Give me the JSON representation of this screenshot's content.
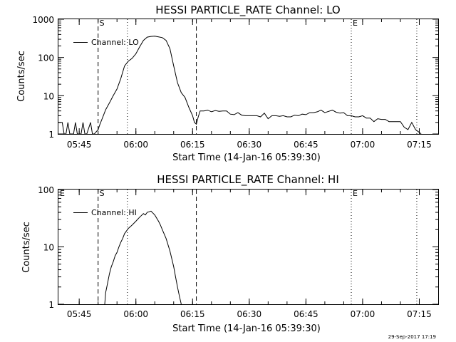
{
  "footer": {
    "date_stamp": "29-Sep-2017 17:19"
  },
  "chart_data": [
    {
      "type": "line",
      "title": "HESSI PARTICLE_RATE Channel: LO",
      "xlabel": "Start Time (14-Jan-16 05:39:30)",
      "ylabel": "Counts/sec",
      "yscale": "log",
      "ylim": [
        1,
        1000
      ],
      "xlim": [
        "05:39:30",
        "07:20:00"
      ],
      "xtick_labels": [
        "05:45",
        "06:00",
        "06:15",
        "06:30",
        "06:45",
        "07:00",
        "07:15"
      ],
      "ytick_labels": [
        "1",
        "10",
        "100",
        "1000"
      ],
      "grid": false,
      "legend_position": "top-left",
      "markers": [
        {
          "label": "S",
          "time": "05:50:00",
          "style": "dashed"
        },
        {
          "label": "",
          "time": "05:57:45",
          "style": "dotted"
        },
        {
          "label": "",
          "time": "06:16:00",
          "style": "dashed"
        },
        {
          "label": "E",
          "time": "06:57:00",
          "style": "dotted"
        },
        {
          "label": "",
          "time": "07:14:20",
          "style": "dotted"
        }
      ],
      "series": [
        {
          "name": "Channel: LO",
          "x": [
            "05:39:30",
            "05:40:30",
            "05:41:00",
            "05:41:30",
            "05:42:00",
            "05:42:30",
            "05:43:30",
            "05:44:00",
            "05:44:30",
            "05:45:30",
            "05:46:00",
            "05:46:30",
            "05:47:00",
            "05:48:00",
            "05:48:30",
            "05:49:00",
            "05:50:00",
            "05:50:30",
            "05:51:00",
            "05:51:30",
            "05:52:00",
            "05:53:00",
            "05:54:00",
            "05:55:00",
            "05:56:00",
            "05:57:00",
            "05:58:00",
            "05:59:00",
            "06:00:00",
            "06:01:00",
            "06:02:00",
            "06:03:00",
            "06:04:00",
            "06:05:00",
            "06:06:00",
            "06:07:00",
            "06:08:00",
            "06:09:00",
            "06:10:00",
            "06:11:00",
            "06:12:00",
            "06:13:00",
            "06:14:00",
            "06:15:00",
            "06:15:30",
            "06:16:00",
            "06:16:30",
            "06:17:00",
            "06:18:00",
            "06:19:00",
            "06:20:00",
            "06:21:00",
            "06:22:00",
            "06:23:00",
            "06:24:00",
            "06:25:00",
            "06:26:00",
            "06:27:00",
            "06:28:00",
            "06:29:00",
            "06:30:00",
            "06:31:00",
            "06:32:00",
            "06:33:00",
            "06:34:00",
            "06:35:00",
            "06:36:00",
            "06:37:00",
            "06:38:00",
            "06:39:00",
            "06:40:00",
            "06:41:00",
            "06:42:00",
            "06:43:00",
            "06:44:00",
            "06:45:00",
            "06:46:00",
            "06:47:00",
            "06:48:00",
            "06:49:00",
            "06:50:00",
            "06:51:00",
            "06:52:00",
            "06:53:00",
            "06:54:00",
            "06:55:00",
            "06:56:00",
            "06:57:00",
            "06:58:00",
            "06:59:00",
            "07:00:00",
            "07:01:00",
            "07:02:00",
            "07:03:00",
            "07:04:00",
            "07:05:00",
            "07:06:00",
            "07:07:00",
            "07:08:00",
            "07:09:00",
            "07:10:00",
            "07:11:00",
            "07:12:00",
            "07:13:00",
            "07:14:00",
            "07:15:00",
            "07:15:30"
          ],
          "y": [
            2,
            2,
            1,
            1,
            2,
            1,
            1,
            2,
            1,
            1,
            2,
            1,
            1,
            2,
            1,
            1,
            1.3,
            1.8,
            2.4,
            3.2,
            4.3,
            6.5,
            10,
            15,
            28,
            60,
            80,
            95,
            125,
            190,
            280,
            340,
            355,
            360,
            345,
            330,
            280,
            170,
            60,
            22,
            12,
            9,
            5,
            3,
            2,
            1.8,
            2.8,
            4,
            4,
            4.2,
            3.8,
            4.1,
            3.9,
            4,
            4,
            3.3,
            3.2,
            3.6,
            3.1,
            3,
            3,
            3,
            3,
            2.8,
            3.5,
            2.5,
            3,
            3,
            2.9,
            3,
            2.8,
            2.8,
            3.1,
            3,
            3.3,
            3.2,
            3.6,
            3.6,
            3.8,
            4.2,
            3.6,
            3.9,
            4.2,
            3.7,
            3.5,
            3.6,
            3,
            3,
            2.8,
            2.8,
            3,
            2.6,
            2.6,
            2.1,
            2.5,
            2.4,
            2.4,
            2.1,
            2.1,
            2.1,
            2.1,
            1.5,
            1.3,
            2,
            1.3,
            1.1,
            1
          ]
        }
      ]
    },
    {
      "type": "line",
      "title": "HESSI PARTICLE_RATE Channel: HI",
      "xlabel": "Start Time (14-Jan-16 05:39:30)",
      "ylabel": "Counts/sec",
      "yscale": "log",
      "ylim": [
        1,
        100
      ],
      "xlim": [
        "05:39:30",
        "07:20:00"
      ],
      "xtick_labels": [
        "05:45",
        "06:00",
        "06:15",
        "06:30",
        "06:45",
        "07:00",
        "07:15"
      ],
      "ytick_labels": [
        "1",
        "10",
        "100"
      ],
      "grid": false,
      "legend_position": "top-left",
      "markers": [
        {
          "label": "E",
          "time": "05:39:30",
          "style": "none"
        },
        {
          "label": "S",
          "time": "05:50:00",
          "style": "dashed"
        },
        {
          "label": "",
          "time": "05:57:45",
          "style": "dotted"
        },
        {
          "label": "",
          "time": "06:16:00",
          "style": "dashed"
        },
        {
          "label": "E",
          "time": "06:57:00",
          "style": "dotted"
        },
        {
          "label": "",
          "time": "07:14:20",
          "style": "dotted"
        }
      ],
      "series": [
        {
          "name": "Channel: HI",
          "x": [
            "05:51:45",
            "05:52:00",
            "05:52:30",
            "05:53:00",
            "05:53:30",
            "05:54:00",
            "05:54:30",
            "05:55:00",
            "05:55:30",
            "05:56:00",
            "05:56:30",
            "05:57:00",
            "05:58:00",
            "05:59:00",
            "06:00:00",
            "06:01:00",
            "06:02:00",
            "06:02:30",
            "06:03:00",
            "06:03:30",
            "06:04:00",
            "06:05:00",
            "06:06:00",
            "06:06:30",
            "06:07:00",
            "06:08:00",
            "06:09:00",
            "06:10:00",
            "06:10:30",
            "06:11:00",
            "06:11:30",
            "06:12:00"
          ],
          "y": [
            1,
            1.6,
            2.3,
            3.4,
            4.5,
            5.5,
            7,
            8,
            10,
            12,
            14,
            17,
            21,
            24,
            28,
            33,
            38,
            36,
            40,
            41,
            42,
            36,
            28,
            24,
            20,
            14,
            8.5,
            4.5,
            3,
            2,
            1.4,
            1
          ]
        }
      ]
    }
  ]
}
